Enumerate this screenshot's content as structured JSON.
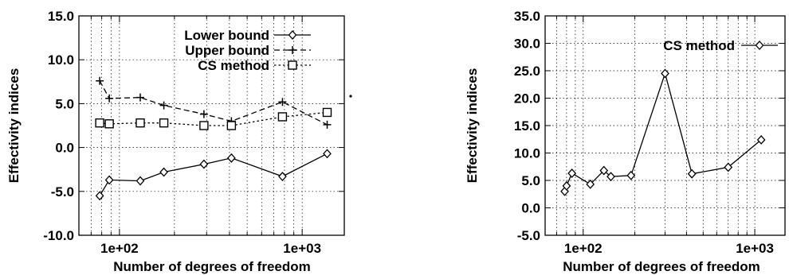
{
  "chart_data": [
    {
      "type": "line",
      "xlabel": "Number of degrees of freedom",
      "ylabel": "Effectivity indices",
      "x_scale": "log",
      "xlim": [
        60,
        1700
      ],
      "ylim": [
        -10,
        15
      ],
      "yticks": [
        "-10.0",
        "-5.0",
        "0.0",
        "5.0",
        "10.0",
        "15.0"
      ],
      "xticks": [
        {
          "value": 100,
          "label": "1e+02"
        },
        {
          "value": 1000,
          "label": "1e+03"
        }
      ],
      "grid": true,
      "legend_position": "top-right",
      "series": [
        {
          "name": "Lower bound",
          "marker": "diamond",
          "line": "solid",
          "x": [
            78,
            88,
            130,
            175,
            290,
            410,
            780,
            1370
          ],
          "y": [
            -5.5,
            -3.7,
            -3.8,
            -2.8,
            -1.9,
            -1.2,
            -3.3,
            -0.7
          ]
        },
        {
          "name": "Upper bound",
          "marker": "plus",
          "line": "dashed",
          "x": [
            78,
            88,
            130,
            175,
            290,
            410,
            780,
            1370
          ],
          "y": [
            7.6,
            5.6,
            5.7,
            4.8,
            3.8,
            3.0,
            5.2,
            2.6
          ]
        },
        {
          "name": "CS method",
          "marker": "square",
          "line": "dotted",
          "x": [
            78,
            88,
            130,
            175,
            290,
            410,
            780,
            1370
          ],
          "y": [
            2.8,
            2.7,
            2.8,
            2.8,
            2.5,
            2.5,
            3.5,
            4.0
          ]
        }
      ]
    },
    {
      "type": "line",
      "xlabel": "Number of degrees of freedom",
      "ylabel": "Effectivity indices",
      "x_scale": "log",
      "xlim": [
        60,
        1500
      ],
      "ylim": [
        -5,
        35
      ],
      "yticks": [
        "-5.0",
        "0.0",
        "5.0",
        "10.0",
        "15.0",
        "20.0",
        "25.0",
        "30.0",
        "35.0"
      ],
      "xticks": [
        {
          "value": 100,
          "label": "1e+02"
        },
        {
          "value": 1000,
          "label": "1e+03"
        }
      ],
      "grid": true,
      "legend_position": "top-right",
      "series": [
        {
          "name": "CS method",
          "marker": "diamond",
          "line": "solid",
          "x": [
            78,
            80,
            86,
            110,
            132,
            145,
            190,
            300,
            430,
            700,
            1090
          ],
          "y": [
            3.0,
            4.0,
            6.3,
            4.3,
            6.8,
            5.7,
            5.9,
            24.5,
            6.2,
            7.4,
            12.4
          ]
        }
      ]
    }
  ]
}
